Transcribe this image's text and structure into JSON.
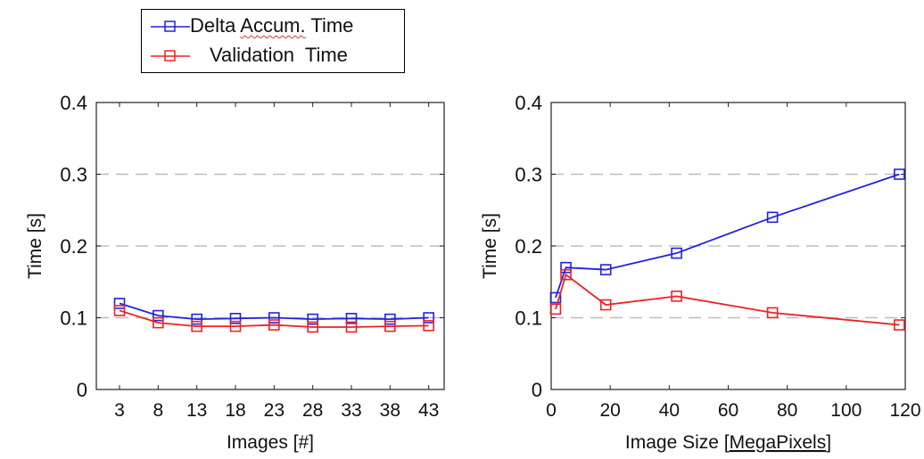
{
  "legend": [
    {
      "label_parts": [
        "Delta ",
        "Accum.",
        " Time"
      ],
      "color": "#2222dd"
    },
    {
      "label_parts": [
        "Validation  Time"
      ],
      "color": "#ee2222"
    }
  ],
  "chart_data": [
    {
      "type": "line",
      "xlabel": "Images [#]",
      "ylabel": "Time  [s]",
      "xticks": [
        3,
        8,
        13,
        18,
        23,
        28,
        33,
        38,
        43
      ],
      "yticks": [
        0,
        0.1,
        0.2,
        0.3,
        0.4
      ],
      "ytick_labels": [
        "0",
        "0.1",
        "0.2",
        "0.3",
        "0.4"
      ],
      "xlim": [
        0,
        45
      ],
      "ylim": [
        0,
        0.4
      ],
      "grid": "horizontal dashed",
      "x": [
        3,
        8,
        13,
        18,
        23,
        28,
        33,
        38,
        43
      ],
      "series": [
        {
          "name": "Delta Accum. Time",
          "color": "#2222dd",
          "values": [
            0.12,
            0.103,
            0.098,
            0.099,
            0.1,
            0.098,
            0.099,
            0.098,
            0.1
          ]
        },
        {
          "name": "Validation Time",
          "color": "#ee2222",
          "values": [
            0.11,
            0.093,
            0.088,
            0.088,
            0.09,
            0.087,
            0.087,
            0.088,
            0.089
          ]
        }
      ]
    },
    {
      "type": "line",
      "xlabel_parts": [
        "Image Size [",
        "MegaPixels",
        "]"
      ],
      "ylabel": "Time  [s]",
      "xticks": [
        0,
        20,
        40,
        60,
        80,
        100,
        120
      ],
      "yticks": [
        0,
        0.1,
        0.2,
        0.3,
        0.4
      ],
      "ytick_labels": [
        "0",
        "0.1",
        "0.2",
        "0.3",
        "0.4"
      ],
      "xlim": [
        0,
        120
      ],
      "ylim": [
        0,
        0.4
      ],
      "grid": "horizontal dashed",
      "x": [
        1.5,
        5,
        18.5,
        42.5,
        75,
        118
      ],
      "series": [
        {
          "name": "Delta Accum. Time",
          "color": "#2222dd",
          "values": [
            0.128,
            0.17,
            0.167,
            0.19,
            0.24,
            0.3
          ]
        },
        {
          "name": "Validation Time",
          "color": "#ee2222",
          "values": [
            0.112,
            0.16,
            0.118,
            0.13,
            0.107,
            0.09
          ]
        }
      ]
    }
  ]
}
